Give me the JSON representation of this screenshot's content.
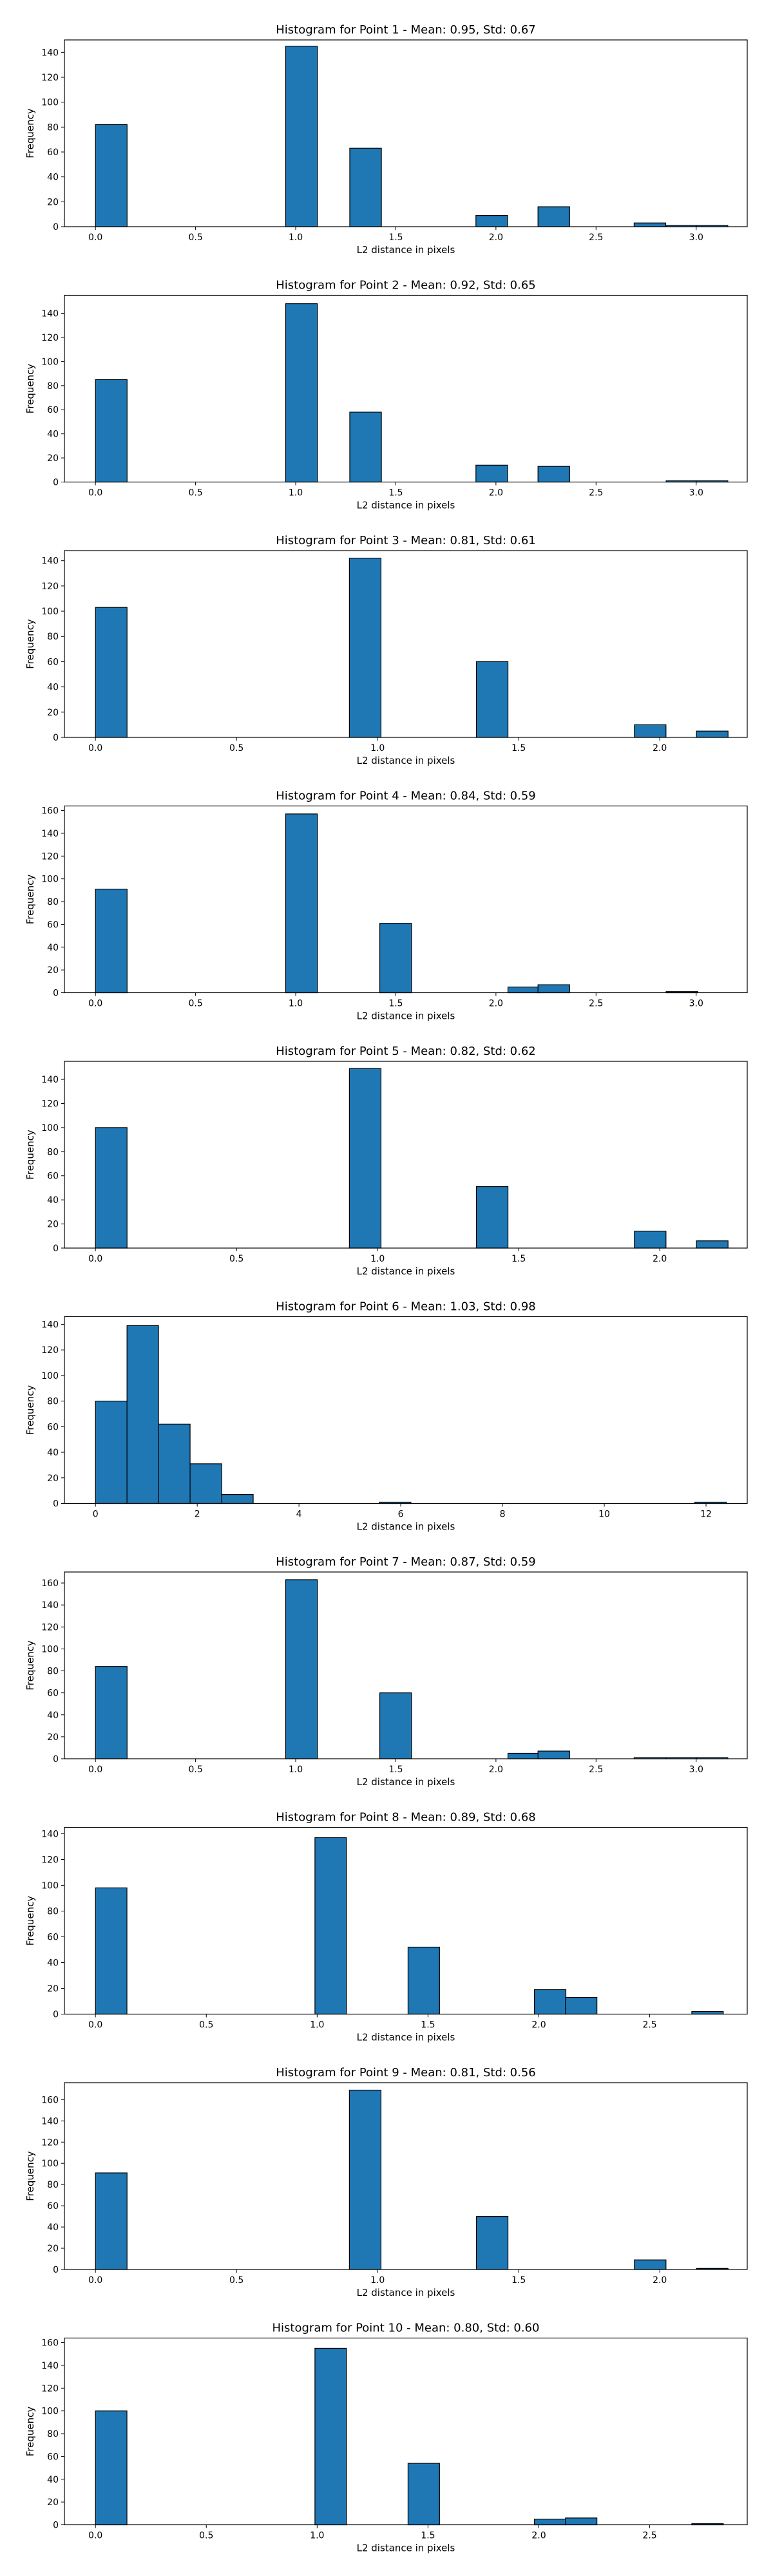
{
  "chart_data": [
    {
      "type": "bar",
      "title": "Histogram for Point 1 - Mean: 0.95, Std: 0.67",
      "xlabel": "L2 distance in pixels",
      "ylabel": "Frequency",
      "xlim": [
        -0.155,
        3.255
      ],
      "ylim": [
        0,
        150
      ],
      "xticks": [
        0,
        0.5,
        1,
        1.5,
        2,
        2.5,
        3
      ],
      "xtick_labels": [
        "0.0",
        "0.5",
        "1.0",
        "1.5",
        "2.0",
        "2.5",
        "3.0"
      ],
      "yticks": [
        0,
        20,
        40,
        60,
        80,
        100,
        120,
        140
      ],
      "bin_width": 0.158,
      "bins": [
        {
          "x": 0.0,
          "y": 82
        },
        {
          "x": 0.95,
          "y": 145
        },
        {
          "x": 1.27,
          "y": 63
        },
        {
          "x": 1.9,
          "y": 9
        },
        {
          "x": 2.21,
          "y": 16
        },
        {
          "x": 2.69,
          "y": 3
        },
        {
          "x": 2.85,
          "y": 1
        },
        {
          "x": 3.0,
          "y": 1
        }
      ]
    },
    {
      "type": "bar",
      "title": "Histogram for Point 2 - Mean: 0.92, Std: 0.65",
      "xlabel": "L2 distance in pixels",
      "ylabel": "Frequency",
      "xlim": [
        -0.155,
        3.255
      ],
      "ylim": [
        0,
        155
      ],
      "xticks": [
        0,
        0.5,
        1,
        1.5,
        2,
        2.5,
        3
      ],
      "xtick_labels": [
        "0.0",
        "0.5",
        "1.0",
        "1.5",
        "2.0",
        "2.5",
        "3.0"
      ],
      "yticks": [
        0,
        20,
        40,
        60,
        80,
        100,
        120,
        140
      ],
      "bin_width": 0.158,
      "bins": [
        {
          "x": 0.0,
          "y": 85
        },
        {
          "x": 0.95,
          "y": 148
        },
        {
          "x": 1.27,
          "y": 58
        },
        {
          "x": 1.9,
          "y": 14
        },
        {
          "x": 2.21,
          "y": 13
        },
        {
          "x": 2.85,
          "y": 1
        },
        {
          "x": 3.0,
          "y": 1
        }
      ]
    },
    {
      "type": "bar",
      "title": "Histogram for Point 3 - Mean: 0.81, Std: 0.61",
      "xlabel": "L2 distance in pixels",
      "ylabel": "Frequency",
      "xlim": [
        -0.11,
        2.31
      ],
      "ylim": [
        0,
        148
      ],
      "xticks": [
        0,
        0.5,
        1,
        1.5,
        2
      ],
      "xtick_labels": [
        "0.0",
        "0.5",
        "1.0",
        "1.5",
        "2.0"
      ],
      "yticks": [
        0,
        20,
        40,
        60,
        80,
        100,
        120,
        140
      ],
      "bin_width": 0.112,
      "bins": [
        {
          "x": 0.0,
          "y": 103
        },
        {
          "x": 0.9,
          "y": 142
        },
        {
          "x": 1.35,
          "y": 60
        },
        {
          "x": 1.91,
          "y": 10
        },
        {
          "x": 2.13,
          "y": 5
        }
      ]
    },
    {
      "type": "bar",
      "title": "Histogram for Point 4 - Mean: 0.84, Std: 0.59",
      "xlabel": "L2 distance in pixels",
      "ylabel": "Frequency",
      "xlim": [
        -0.155,
        3.255
      ],
      "ylim": [
        0,
        164
      ],
      "xticks": [
        0,
        0.5,
        1,
        1.5,
        2,
        2.5,
        3
      ],
      "xtick_labels": [
        "0.0",
        "0.5",
        "1.0",
        "1.5",
        "2.0",
        "2.5",
        "3.0"
      ],
      "yticks": [
        0,
        20,
        40,
        60,
        80,
        100,
        120,
        140,
        160
      ],
      "bin_width": 0.158,
      "bins": [
        {
          "x": 0.0,
          "y": 91
        },
        {
          "x": 0.95,
          "y": 157
        },
        {
          "x": 1.42,
          "y": 61
        },
        {
          "x": 2.06,
          "y": 5
        },
        {
          "x": 2.21,
          "y": 7
        },
        {
          "x": 2.85,
          "y": 1
        }
      ]
    },
    {
      "type": "bar",
      "title": "Histogram for Point 5 - Mean: 0.82, Std: 0.62",
      "xlabel": "L2 distance in pixels",
      "ylabel": "Frequency",
      "xlim": [
        -0.11,
        2.31
      ],
      "ylim": [
        0,
        155
      ],
      "xticks": [
        0,
        0.5,
        1,
        1.5,
        2
      ],
      "xtick_labels": [
        "0.0",
        "0.5",
        "1.0",
        "1.5",
        "2.0"
      ],
      "yticks": [
        0,
        20,
        40,
        60,
        80,
        100,
        120,
        140
      ],
      "bin_width": 0.112,
      "bins": [
        {
          "x": 0.0,
          "y": 100
        },
        {
          "x": 0.9,
          "y": 149
        },
        {
          "x": 1.35,
          "y": 51
        },
        {
          "x": 1.91,
          "y": 14
        },
        {
          "x": 2.13,
          "y": 6
        }
      ]
    },
    {
      "type": "bar",
      "title": "Histogram for Point 6 - Mean: 1.03, Std: 0.98",
      "xlabel": "L2 distance in pixels",
      "ylabel": "Frequency",
      "xlim": [
        -0.61,
        12.81
      ],
      "ylim": [
        0,
        146
      ],
      "xticks": [
        0,
        2,
        4,
        6,
        8,
        10,
        12
      ],
      "xtick_labels": [
        "0",
        "2",
        "4",
        "6",
        "8",
        "10",
        "12"
      ],
      "yticks": [
        0,
        20,
        40,
        60,
        80,
        100,
        120,
        140
      ],
      "bin_width": 0.62,
      "bins": [
        {
          "x": 0.0,
          "y": 80
        },
        {
          "x": 0.62,
          "y": 139
        },
        {
          "x": 1.24,
          "y": 62
        },
        {
          "x": 1.86,
          "y": 31
        },
        {
          "x": 2.48,
          "y": 7
        },
        {
          "x": 5.58,
          "y": 1
        },
        {
          "x": 11.78,
          "y": 1
        }
      ]
    },
    {
      "type": "bar",
      "title": "Histogram for Point 7 - Mean: 0.87, Std: 0.59",
      "xlabel": "L2 distance in pixels",
      "ylabel": "Frequency",
      "xlim": [
        -0.155,
        3.255
      ],
      "ylim": [
        0,
        170
      ],
      "xticks": [
        0,
        0.5,
        1,
        1.5,
        2,
        2.5,
        3
      ],
      "xtick_labels": [
        "0.0",
        "0.5",
        "1.0",
        "1.5",
        "2.0",
        "2.5",
        "3.0"
      ],
      "yticks": [
        0,
        20,
        40,
        60,
        80,
        100,
        120,
        140,
        160
      ],
      "bin_width": 0.158,
      "bins": [
        {
          "x": 0.0,
          "y": 84
        },
        {
          "x": 0.95,
          "y": 163
        },
        {
          "x": 1.42,
          "y": 60
        },
        {
          "x": 2.06,
          "y": 5
        },
        {
          "x": 2.21,
          "y": 7
        },
        {
          "x": 2.69,
          "y": 1
        },
        {
          "x": 2.85,
          "y": 1
        },
        {
          "x": 3.0,
          "y": 1
        }
      ]
    },
    {
      "type": "bar",
      "title": "Histogram for Point 8 - Mean: 0.89, Std: 0.68",
      "xlabel": "L2 distance in pixels",
      "ylabel": "Frequency",
      "xlim": [
        -0.14,
        2.94
      ],
      "ylim": [
        0,
        145
      ],
      "xticks": [
        0,
        0.5,
        1,
        1.5,
        2,
        2.5
      ],
      "xtick_labels": [
        "0.0",
        "0.5",
        "1.0",
        "1.5",
        "2.0",
        "2.5"
      ],
      "yticks": [
        0,
        20,
        40,
        60,
        80,
        100,
        120,
        140
      ],
      "bin_width": 0.142,
      "bins": [
        {
          "x": 0.0,
          "y": 98
        },
        {
          "x": 0.99,
          "y": 137
        },
        {
          "x": 1.41,
          "y": 52
        },
        {
          "x": 1.98,
          "y": 19
        },
        {
          "x": 2.12,
          "y": 13
        },
        {
          "x": 2.69,
          "y": 2
        }
      ]
    },
    {
      "type": "bar",
      "title": "Histogram for Point 9 - Mean: 0.81, Std: 0.56",
      "xlabel": "L2 distance in pixels",
      "ylabel": "Frequency",
      "xlim": [
        -0.11,
        2.31
      ],
      "ylim": [
        0,
        176
      ],
      "xticks": [
        0,
        0.5,
        1,
        1.5,
        2
      ],
      "xtick_labels": [
        "0.0",
        "0.5",
        "1.0",
        "1.5",
        "2.0"
      ],
      "yticks": [
        0,
        20,
        40,
        60,
        80,
        100,
        120,
        140,
        160
      ],
      "bin_width": 0.112,
      "bins": [
        {
          "x": 0.0,
          "y": 91
        },
        {
          "x": 0.9,
          "y": 169
        },
        {
          "x": 1.35,
          "y": 50
        },
        {
          "x": 1.91,
          "y": 9
        },
        {
          "x": 2.13,
          "y": 1
        }
      ]
    },
    {
      "type": "bar",
      "title": "Histogram for Point 10 - Mean: 0.80, Std: 0.60",
      "xlabel": "L2 distance in pixels",
      "ylabel": "Frequency",
      "xlim": [
        -0.14,
        2.94
      ],
      "ylim": [
        0,
        164
      ],
      "xticks": [
        0,
        0.5,
        1,
        1.5,
        2,
        2.5
      ],
      "xtick_labels": [
        "0.0",
        "0.5",
        "1.0",
        "1.5",
        "2.0",
        "2.5"
      ],
      "yticks": [
        0,
        20,
        40,
        60,
        80,
        100,
        120,
        140,
        160
      ],
      "bin_width": 0.142,
      "bins": [
        {
          "x": 0.0,
          "y": 100
        },
        {
          "x": 0.99,
          "y": 155
        },
        {
          "x": 1.41,
          "y": 54
        },
        {
          "x": 1.98,
          "y": 5
        },
        {
          "x": 2.12,
          "y": 6
        },
        {
          "x": 2.69,
          "y": 1
        }
      ]
    }
  ],
  "colors": {
    "bar_fill": "#1f77b4",
    "bar_edge": "#000000",
    "axis": "#000000",
    "background": "#ffffff"
  }
}
